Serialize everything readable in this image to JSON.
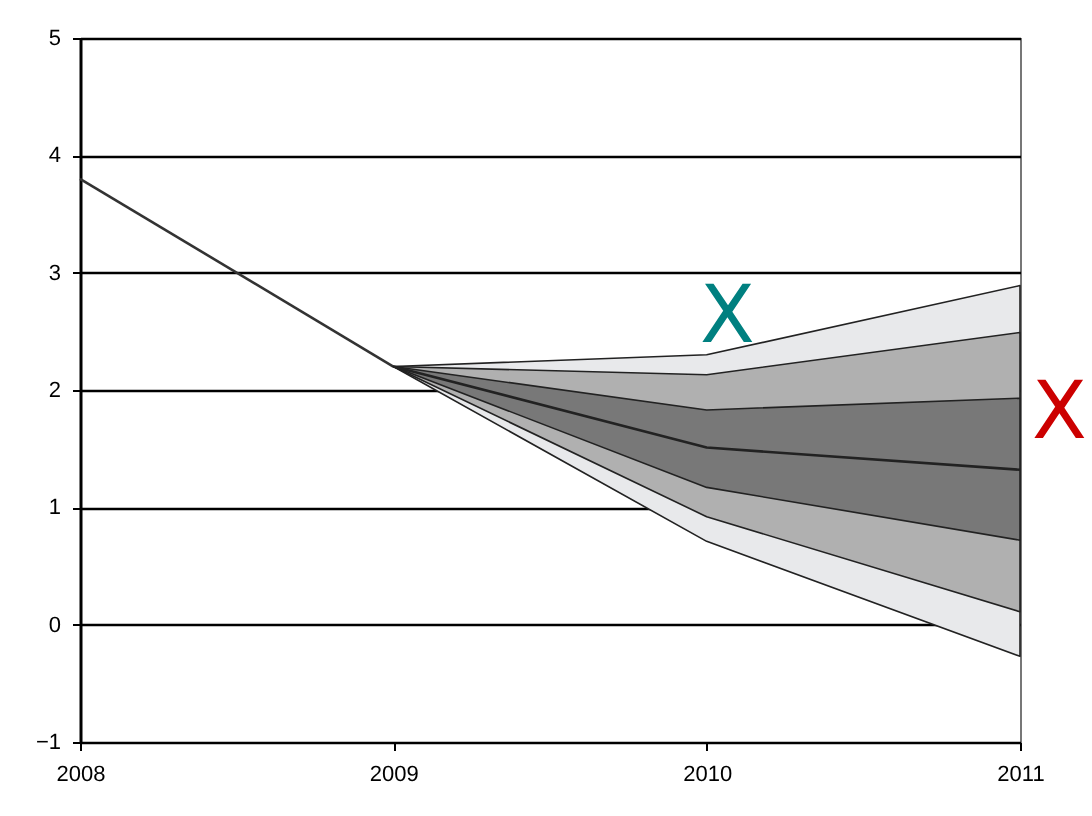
{
  "chart_data": {
    "type": "line",
    "xlim": [
      2008,
      2011
    ],
    "xticks": [
      2008,
      2009,
      2010,
      2011
    ],
    "ylim": [
      -1,
      5
    ],
    "yticks": [
      -1,
      0,
      1,
      2,
      3,
      4,
      5
    ],
    "grid": "y",
    "marker": "none",
    "line_style": "solid",
    "series": [
      {
        "color": "#333333",
        "x": [
          2008,
          2009
        ],
        "values": [
          3.8,
          2.2
        ]
      },
      {
        "color": "#e8e9eb",
        "x": [
          2009,
          2010,
          2011
        ],
        "values": [
          null,
          null,
          null
        ],
        "lower": [
          2.2,
          0.71,
          -0.27
        ],
        "upper": [
          2.2,
          2.3,
          2.89
        ]
      },
      {
        "color": "#b0b0b0",
        "x": [
          2009,
          2010,
          2011
        ],
        "values": [
          null,
          null,
          null
        ],
        "lower": [
          2.2,
          0.92,
          0.11
        ],
        "upper": [
          2.2,
          2.13,
          2.49
        ]
      },
      {
        "color": "#787878",
        "x": [
          2009,
          2010,
          2011
        ],
        "values": [
          null,
          null,
          null
        ],
        "lower": [
          2.2,
          1.17,
          0.72
        ],
        "upper": [
          2.2,
          1.83,
          1.93
        ]
      },
      {
        "color": "#222222",
        "x": [
          2009,
          2010,
          2011
        ],
        "values": [
          2.2,
          1.51,
          1.32
        ]
      }
    ],
    "annotations": [
      "X",
      "X"
    ]
  }
}
